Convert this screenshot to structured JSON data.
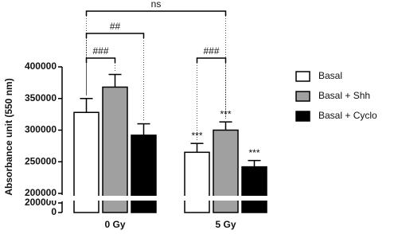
{
  "chart_data": {
    "type": "bar",
    "y_label": "Absorbance unit (550 nm)",
    "categories": [
      "0 Gy",
      "5 Gy"
    ],
    "series": [
      {
        "name": "Basal",
        "color": "#ffffff",
        "values": [
          328000,
          265000
        ],
        "errors": [
          22000,
          14000
        ]
      },
      {
        "name": "Basal + Shh",
        "color": "#a0a0a0",
        "values": [
          368000,
          300000
        ],
        "errors": [
          20000,
          13000
        ]
      },
      {
        "name": "Basal + Cyclo",
        "color": "#000000",
        "values": [
          292000,
          242000
        ],
        "errors": [
          18000,
          10000
        ]
      }
    ],
    "ysegments": [
      {
        "ylim": [
          0,
          200000
        ],
        "yticks": [
          0,
          200000
        ]
      },
      {
        "ylim": [
          200000,
          400000
        ],
        "yticks": [
          200000,
          250000,
          300000,
          350000,
          400000
        ]
      }
    ],
    "annotations": [
      "ns",
      "##",
      "###",
      "###",
      "***",
      "***",
      "***"
    ],
    "legend": "right"
  }
}
